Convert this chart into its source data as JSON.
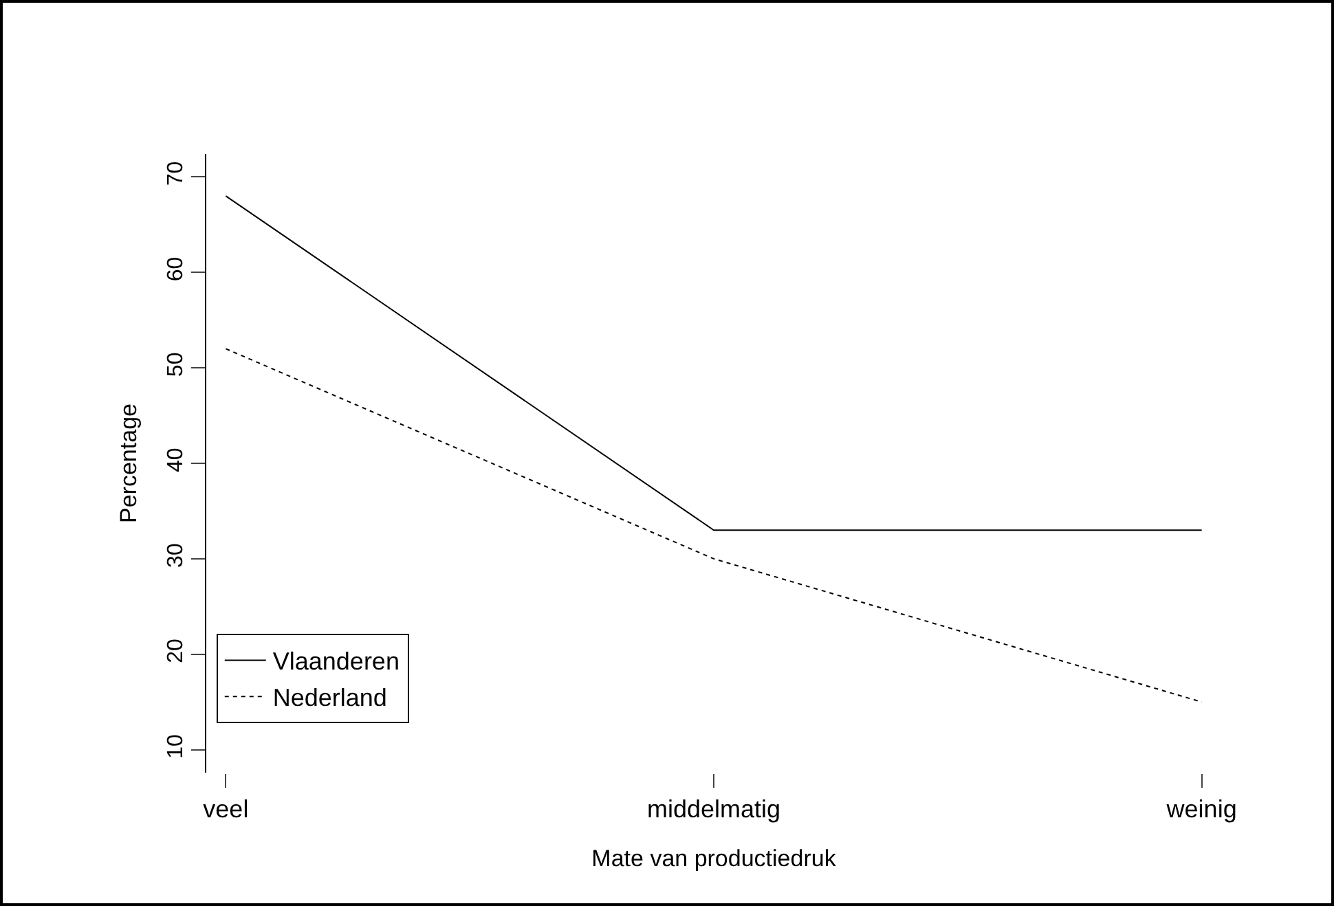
{
  "chart_data": {
    "type": "line",
    "xlabel": "Mate van productiedruk",
    "ylabel": "Percentage",
    "categories": [
      "veel",
      "middelmatig",
      "weinig"
    ],
    "series": [
      {
        "name": "Vlaanderen",
        "color": "#000000",
        "line_style": "solid",
        "values": [
          68,
          33,
          33
        ]
      },
      {
        "name": "Nederland",
        "color": "#000000",
        "line_style": "dotted",
        "values": [
          52,
          30,
          15
        ]
      }
    ],
    "ylim": [
      7.6,
      72.4
    ],
    "yticks": [
      10,
      20,
      30,
      40,
      50,
      60,
      70
    ],
    "grid": false,
    "legend": "bottom left",
    "marker": "none"
  }
}
